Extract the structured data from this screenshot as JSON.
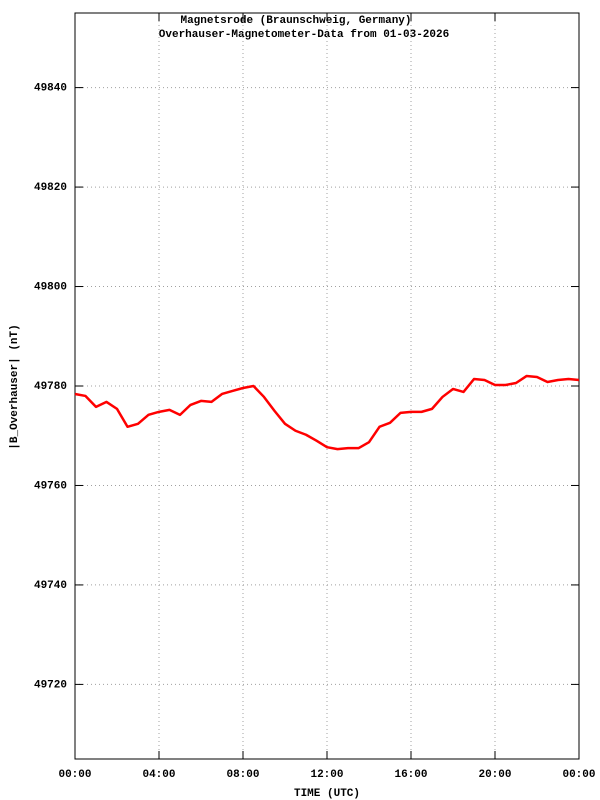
{
  "chart_data": {
    "type": "line",
    "title": "Magnetsrode (Braunschweig, Germany)",
    "subtitle": "Overhauser-Magnetometer-Data from 01-03-2026",
    "x_label": "TIME (UTC)",
    "y_label": "|B_Overhauser| (nT)",
    "color": "#ff0000",
    "grid": true,
    "x": [
      0,
      0.5,
      1,
      1.5,
      2,
      2.5,
      3,
      3.5,
      4,
      4.5,
      5,
      5.5,
      6,
      6.5,
      7,
      7.5,
      8,
      8.5,
      9,
      9.5,
      10,
      10.5,
      11,
      11.5,
      12,
      12.5,
      13,
      13.5,
      14,
      14.5,
      15,
      15.5,
      16,
      16.5,
      17,
      17.5,
      18,
      18.5,
      19,
      19.5,
      20,
      20.5,
      21,
      21.5,
      22,
      22.5,
      23,
      23.5,
      24
    ],
    "values": [
      49778.4,
      49778,
      49775.8,
      49776.8,
      49775.4,
      49771.8,
      49772.4,
      49774.2,
      49774.8,
      49775.2,
      49774.2,
      49776.2,
      49777,
      49776.8,
      49778.4,
      49779,
      49779.6,
      49780,
      49777.8,
      49775,
      49772.4,
      49771,
      49770.2,
      49769,
      49767.7,
      49767.3,
      49767.5,
      49767.5,
      49768.7,
      49771.8,
      49772.6,
      49774.6,
      49774.8,
      49774.8,
      49775.4,
      49777.8,
      49779.4,
      49778.8,
      49781.4,
      49781.2,
      49780.2,
      49780.2,
      49780.6,
      49782,
      49781.8,
      49780.8,
      49781.2,
      49781.4,
      49781.2
    ],
    "xlim": [
      0,
      24
    ],
    "xticks": [
      {
        "value": 0,
        "label": "00:00"
      },
      {
        "value": 4,
        "label": "04:00"
      },
      {
        "value": 8,
        "label": "08:00"
      },
      {
        "value": 12,
        "label": "12:00"
      },
      {
        "value": 16,
        "label": "16:00"
      },
      {
        "value": 20,
        "label": "20:00"
      },
      {
        "value": 24,
        "label": "00:00"
      }
    ],
    "ylim": [
      49705,
      49855
    ],
    "yticks": [
      49720,
      49740,
      49760,
      49780,
      49800,
      49820,
      49840
    ]
  }
}
